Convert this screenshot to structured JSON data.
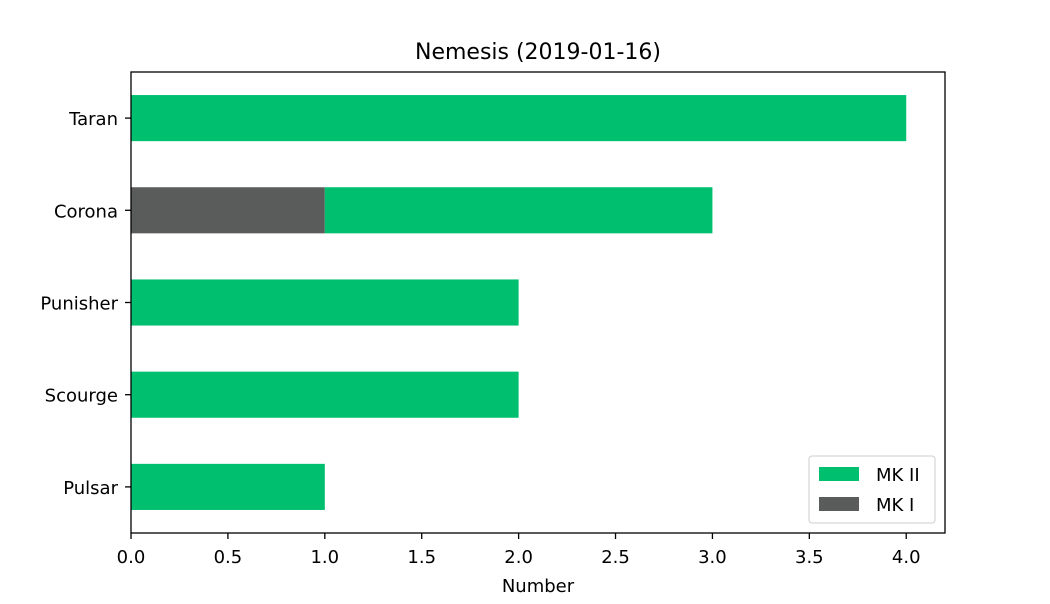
{
  "chart_data": {
    "type": "bar",
    "orientation": "horizontal",
    "stacked": true,
    "title": "Nemesis (2019-01-16)",
    "xlabel": "Number",
    "ylabel": "",
    "categories": [
      "Taran",
      "Corona",
      "Punisher",
      "Scourge",
      "Pulsar"
    ],
    "series": [
      {
        "name": "MK I",
        "color": "#5a5c5b",
        "values": [
          0,
          1,
          0,
          0,
          0
        ]
      },
      {
        "name": "MK II",
        "color": "#00bf6f",
        "values": [
          4,
          2,
          2,
          2,
          1
        ]
      }
    ],
    "xlim": [
      0,
      4.2
    ],
    "xticks": [
      "0.0",
      "0.5",
      "1.0",
      "1.5",
      "2.0",
      "2.5",
      "3.0",
      "3.5",
      "4.0"
    ],
    "grid": false,
    "legend": {
      "placement": "lower-right",
      "entries": [
        "MK II",
        "MK I"
      ]
    }
  }
}
